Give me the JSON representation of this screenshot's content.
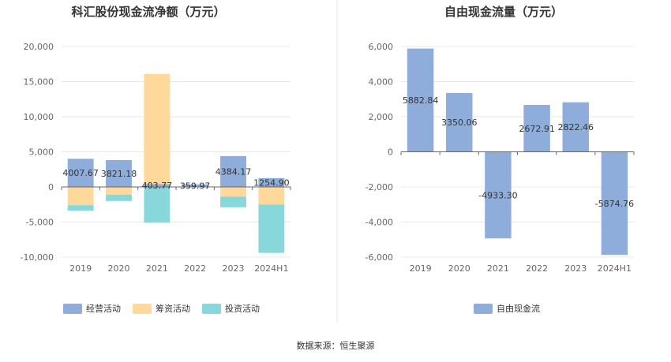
{
  "chart_data": [
    {
      "type": "bar",
      "stacked": true,
      "title": "科汇股份现金流净额（万元）",
      "categories": [
        "2019",
        "2020",
        "2021",
        "2022",
        "2023",
        "2024H1"
      ],
      "ylim": [
        -10000,
        20000
      ],
      "yticks": [
        "20,000",
        "15,000",
        "10,000",
        "5,000",
        "0",
        "-5,000",
        "-10,000"
      ],
      "ytick_values": [
        20000,
        15000,
        10000,
        5000,
        0,
        -5000,
        -10000
      ],
      "series": [
        {
          "name": "经营活动",
          "color": "#8EADDB",
          "values": [
            4007.67,
            3821.18,
            403.77,
            359.97,
            4384.17,
            1254.9
          ]
        },
        {
          "name": "筹资活动",
          "color": "#FFD89B",
          "values": [
            -2600,
            -1100,
            15700,
            0,
            -1400,
            -2500
          ]
        },
        {
          "name": "投资活动",
          "color": "#88D8DB",
          "values": [
            -800,
            -900,
            -5100,
            0,
            -1500,
            -6900
          ]
        }
      ],
      "data_labels": [
        "4007.67",
        "3821.18",
        "403.77",
        "359.97",
        "4384.17",
        "1254.90"
      ],
      "legend_position": "bottom"
    },
    {
      "type": "bar",
      "title": "自由现金流量（万元）",
      "categories": [
        "2019",
        "2020",
        "2021",
        "2022",
        "2023",
        "2024H1"
      ],
      "ylim": [
        -6000,
        6000
      ],
      "yticks": [
        "6,000",
        "4,000",
        "2,000",
        "0",
        "-2,000",
        "-4,000",
        "-6,000"
      ],
      "ytick_values": [
        6000,
        4000,
        2000,
        0,
        -2000,
        -4000,
        -6000
      ],
      "series": [
        {
          "name": "自由现金流",
          "color": "#8EADDB",
          "values": [
            5882.84,
            3350.06,
            -4933.3,
            2672.91,
            2822.46,
            -5874.76
          ]
        }
      ],
      "data_labels": [
        "5882.84",
        "3350.06",
        "-4933.30",
        "2672.91",
        "2822.46",
        "-5874.76"
      ],
      "legend_position": "bottom"
    }
  ],
  "source_text": "数据来源：恒生聚源"
}
